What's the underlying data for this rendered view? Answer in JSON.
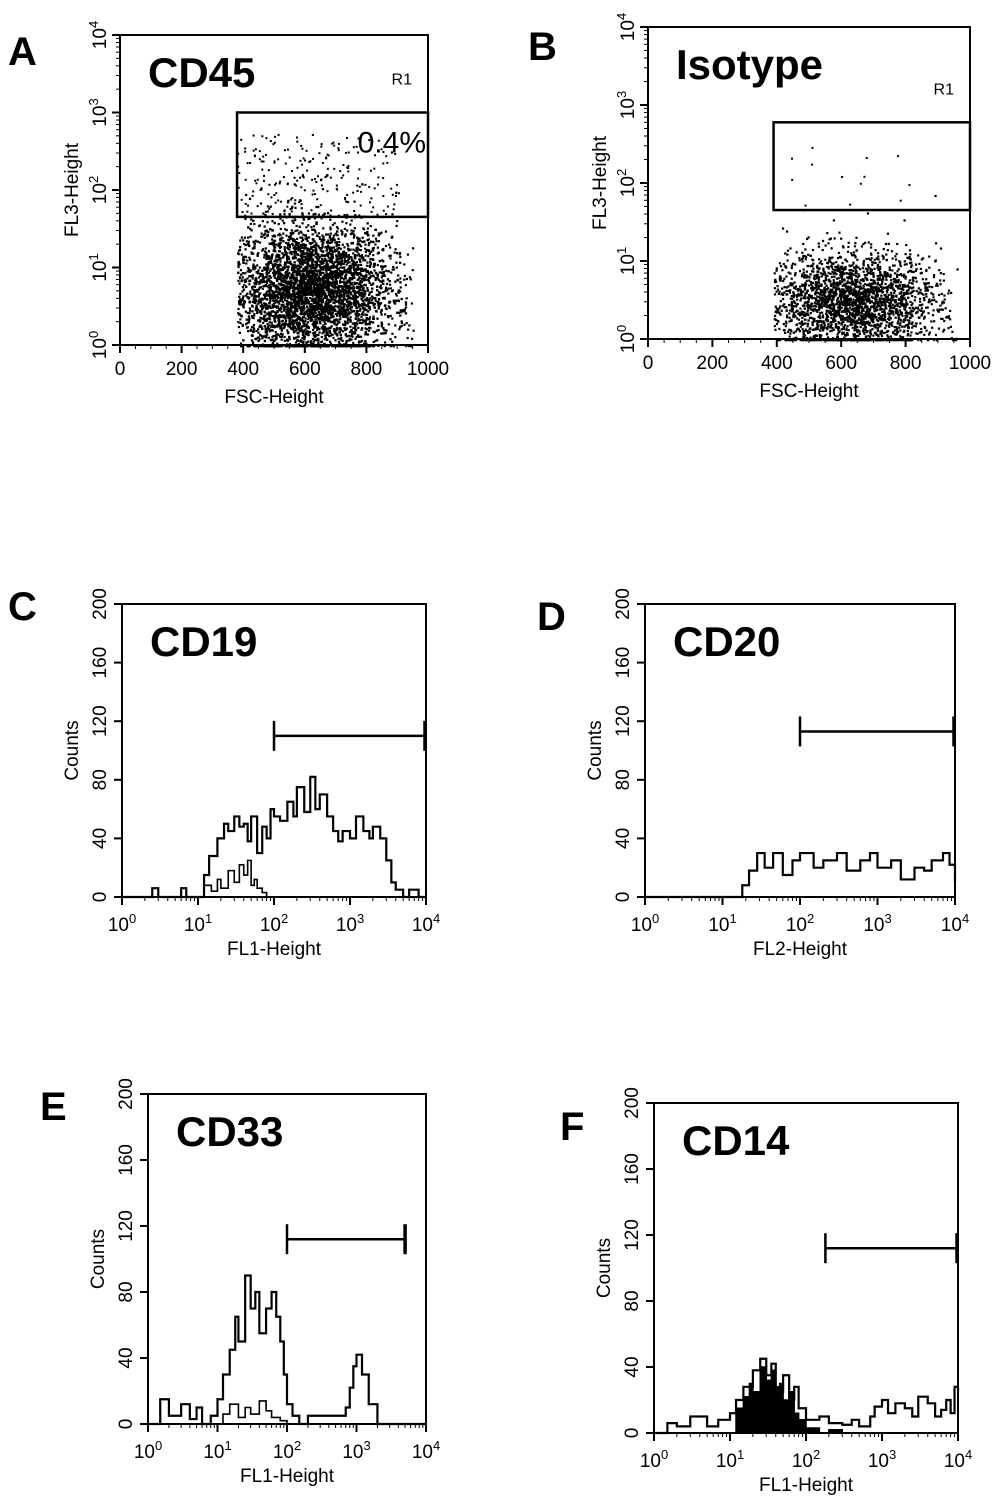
{
  "panels": [
    {
      "id": "A",
      "kind": "scatter",
      "letter": "A",
      "title": "CD45",
      "xlabel": "FSC-Height",
      "ylabel": "FL3-Height",
      "region_label": "R1",
      "gate_text": "0.4%",
      "xticks": [
        "0",
        "200",
        "400",
        "600",
        "800",
        "1000"
      ],
      "ytick_exponents": [
        "0",
        "1",
        "2",
        "3",
        "4"
      ],
      "ytick_base": "10"
    },
    {
      "id": "B",
      "kind": "scatter",
      "letter": "B",
      "title": "Isotype",
      "xlabel": "FSC-Height",
      "ylabel": "FL3-Height",
      "region_label": "R1",
      "gate_text": "",
      "xticks": [
        "0",
        "200",
        "400",
        "600",
        "800",
        "1000"
      ],
      "ytick_exponents": [
        "0",
        "1",
        "2",
        "3",
        "4"
      ],
      "ytick_base": "10"
    },
    {
      "id": "C",
      "kind": "histogram",
      "letter": "C",
      "title": "CD19",
      "xlabel": "FL1-Height",
      "ylabel": "Counts",
      "yticks": [
        "0",
        "40",
        "80",
        "120",
        "160",
        "200"
      ],
      "xtick_exponents": [
        "0",
        "1",
        "2",
        "3",
        "4"
      ],
      "xtick_base": "10"
    },
    {
      "id": "D",
      "kind": "histogram",
      "letter": "D",
      "title": "CD20",
      "xlabel": "FL2-Height",
      "ylabel": "Counts",
      "yticks": [
        "0",
        "40",
        "80",
        "120",
        "160",
        "200"
      ],
      "xtick_exponents": [
        "0",
        "1",
        "2",
        "3",
        "4"
      ],
      "xtick_base": "10"
    },
    {
      "id": "E",
      "kind": "histogram",
      "letter": "E",
      "title": "CD33",
      "xlabel": "FL1-Height",
      "ylabel": "Counts",
      "yticks": [
        "0",
        "40",
        "80",
        "120",
        "160",
        "200"
      ],
      "xtick_exponents": [
        "0",
        "1",
        "2",
        "3",
        "4"
      ],
      "xtick_base": "10"
    },
    {
      "id": "F",
      "kind": "histogram",
      "letter": "F",
      "title": "CD14",
      "xlabel": "FL1-Height",
      "ylabel": "Counts",
      "yticks": [
        "0",
        "40",
        "80",
        "120",
        "160",
        "200"
      ],
      "xtick_exponents": [
        "0",
        "1",
        "2",
        "3",
        "4"
      ],
      "xtick_base": "10"
    }
  ],
  "chart_data": [
    {
      "panel": "A",
      "type": "scatter",
      "title": "CD45",
      "xlabel": "FSC-Height",
      "ylabel": "FL3-Height",
      "xlim": [
        0,
        1000
      ],
      "ylim": [
        1,
        10000
      ],
      "yscale": "log",
      "population": {
        "x_range": [
          380,
          950
        ],
        "y_center": 5,
        "peak_x": 620,
        "density": "very dense"
      },
      "gate": {
        "name": "R1",
        "x": [
          380,
          1000
        ],
        "y": [
          45,
          1000
        ],
        "percent": "0.4%"
      }
    },
    {
      "panel": "B",
      "type": "scatter",
      "title": "Isotype",
      "xlabel": "FSC-Height",
      "ylabel": "FL3-Height",
      "xlim": [
        0,
        1000
      ],
      "ylim": [
        1,
        10000
      ],
      "yscale": "log",
      "population": {
        "x_range": [
          390,
          960
        ],
        "y_center": 3,
        "peak_x": 630,
        "density": "dense"
      },
      "gate": {
        "name": "R1",
        "x": [
          390,
          1000
        ],
        "y": [
          45,
          600
        ]
      }
    },
    {
      "panel": "C",
      "type": "line",
      "title": "CD19",
      "xlabel": "FL1-Height",
      "ylabel": "Counts",
      "xlim": [
        1,
        10000
      ],
      "xscale": "log",
      "ylim": [
        0,
        200
      ],
      "marker": {
        "x": [
          100,
          10000
        ],
        "y": 110
      },
      "series": [
        {
          "x": [
            1,
            2,
            2.5,
            3,
            5,
            6,
            7,
            10,
            12,
            14,
            18,
            22,
            25,
            30,
            35,
            40,
            45,
            50,
            60,
            70,
            80,
            90,
            100,
            120,
            150,
            180,
            200,
            250,
            300,
            350,
            400,
            500,
            600,
            700,
            800,
            1000,
            1200,
            1500,
            1800,
            2000,
            2500,
            3000,
            3500,
            4000,
            5000,
            6000,
            8000,
            10000
          ],
          "values": [
            0,
            0,
            6,
            0,
            0,
            6,
            0,
            0,
            15,
            28,
            40,
            50,
            45,
            55,
            48,
            50,
            38,
            55,
            30,
            48,
            40,
            60,
            55,
            52,
            65,
            55,
            75,
            58,
            82,
            60,
            70,
            55,
            45,
            38,
            45,
            40,
            55,
            45,
            40,
            48,
            40,
            25,
            10,
            5,
            0,
            5,
            0,
            0
          ]
        },
        {
          "x": [
            1,
            10,
            12,
            15,
            18,
            20,
            25,
            30,
            35,
            40,
            45,
            50,
            55,
            60,
            70,
            80,
            100,
            10000
          ],
          "values": [
            0,
            0,
            8,
            4,
            12,
            6,
            18,
            10,
            22,
            15,
            25,
            8,
            12,
            6,
            3,
            0,
            0,
            0
          ]
        }
      ]
    },
    {
      "panel": "D",
      "type": "line",
      "title": "CD20",
      "xlabel": "FL2-Height",
      "ylabel": "Counts",
      "xlim": [
        1,
        10000
      ],
      "xscale": "log",
      "ylim": [
        0,
        200
      ],
      "marker": {
        "x": [
          100,
          10000
        ],
        "y": 113
      },
      "series": [
        {
          "x": [
            1,
            15,
            18,
            22,
            28,
            35,
            45,
            60,
            80,
            100,
            150,
            200,
            300,
            400,
            600,
            800,
            1000,
            1500,
            2000,
            3000,
            4000,
            5000,
            7000,
            8500,
            10000
          ],
          "values": [
            0,
            0,
            8,
            18,
            30,
            20,
            30,
            15,
            25,
            30,
            20,
            25,
            30,
            18,
            25,
            30,
            20,
            25,
            12,
            20,
            18,
            25,
            30,
            22,
            10
          ]
        }
      ]
    },
    {
      "panel": "E",
      "type": "line",
      "title": "CD33",
      "xlabel": "FL1-Height",
      "ylabel": "Counts",
      "xlim": [
        1,
        10000
      ],
      "xscale": "log",
      "ylim": [
        0,
        200
      ],
      "marker": {
        "x": [
          100,
          5000
        ],
        "y": 112
      },
      "series": [
        {
          "x": [
            1,
            1.5,
            2,
            3,
            4,
            5,
            6,
            8,
            10,
            12,
            15,
            18,
            20,
            25,
            30,
            35,
            40,
            50,
            60,
            70,
            80,
            90,
            100,
            120,
            150,
            200,
            300,
            500,
            700,
            800,
            900,
            1000,
            1200,
            1500,
            2000,
            3000,
            10000
          ],
          "values": [
            0,
            15,
            5,
            12,
            3,
            10,
            0,
            5,
            15,
            30,
            45,
            65,
            50,
            90,
            70,
            80,
            55,
            70,
            80,
            65,
            50,
            30,
            12,
            5,
            0,
            5,
            5,
            5,
            10,
            22,
            35,
            42,
            30,
            12,
            0,
            0,
            0
          ]
        },
        {
          "x": [
            1,
            10,
            12,
            15,
            20,
            25,
            30,
            40,
            50,
            60,
            80,
            100,
            10000
          ],
          "values": [
            0,
            0,
            6,
            12,
            4,
            10,
            6,
            14,
            8,
            4,
            2,
            0,
            0
          ]
        }
      ]
    },
    {
      "panel": "F",
      "type": "line",
      "title": "CD14",
      "xlabel": "FL1-Height",
      "ylabel": "Counts",
      "xlim": [
        1,
        10000
      ],
      "xscale": "log",
      "ylim": [
        0,
        200
      ],
      "marker": {
        "x": [
          180,
          10000
        ],
        "y": 112
      },
      "series": [
        {
          "x": [
            1,
            1.5,
            2,
            3,
            5,
            7,
            10,
            12,
            15,
            20,
            25,
            30,
            35,
            40,
            50,
            60,
            70,
            80,
            100,
            150,
            200,
            300,
            400,
            500,
            700,
            800,
            1000,
            1200,
            1500,
            2000,
            2500,
            3000,
            4000,
            5000,
            6000,
            7000,
            8000,
            9000,
            10000
          ],
          "values": [
            0,
            6,
            4,
            10,
            4,
            8,
            12,
            20,
            28,
            38,
            45,
            35,
            42,
            25,
            35,
            20,
            28,
            15,
            8,
            10,
            6,
            5,
            8,
            4,
            10,
            16,
            20,
            12,
            18,
            15,
            10,
            22,
            18,
            10,
            14,
            20,
            12,
            28,
            25
          ]
        },
        {
          "x": [
            1,
            10,
            12,
            15,
            18,
            20,
            25,
            30,
            35,
            40,
            45,
            50,
            60,
            70,
            80,
            100,
            150,
            200,
            300,
            500,
            10000
          ],
          "values": [
            0,
            0,
            15,
            22,
            30,
            25,
            40,
            32,
            38,
            28,
            30,
            20,
            25,
            12,
            8,
            3,
            0,
            2,
            0,
            0,
            0
          ]
        }
      ],
      "second_series_filled": true
    }
  ]
}
